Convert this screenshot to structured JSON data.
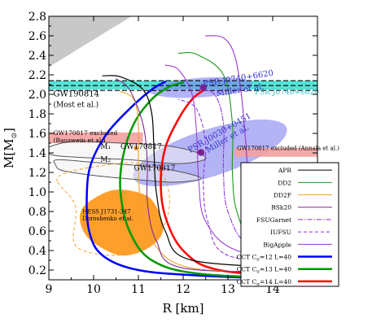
{
  "chart_data": {
    "type": "line",
    "xlabel": "R [km]",
    "ylabel": "M[M",
    "ylabel_sub": "⊙",
    "ylabel_close": "]",
    "xlim": [
      9,
      15
    ],
    "ylim": [
      0.1,
      2.8
    ],
    "xticks": [
      9,
      10,
      11,
      12,
      13,
      14
    ],
    "yticks": [
      0.2,
      0.4,
      0.6,
      0.8,
      1.0,
      1.2,
      1.4,
      1.6,
      1.8,
      2.0,
      2.2,
      2.4,
      2.6,
      2.8
    ],
    "grid": false,
    "legend_position": "bottom-right",
    "legend": [
      {
        "label": "APR",
        "color": "#000000",
        "dash": "solid",
        "width": 1
      },
      {
        "label": "DD2",
        "color": "#1a9a1a",
        "dash": "solid",
        "width": 1
      },
      {
        "label": "DD2F",
        "color": "#f0a030",
        "dash": "solid",
        "width": 1
      },
      {
        "label": "BSk20",
        "color": "#7b2d8b",
        "dash": "solid",
        "width": 1
      },
      {
        "label": "FSUGarnet",
        "color": "#8a2be2",
        "dash": "dashdot",
        "width": 1
      },
      {
        "label": "IUFSU",
        "color": "#8a2be2",
        "dash": "dash",
        "width": 1
      },
      {
        "label": "BigApple",
        "color": "#9933cc",
        "dash": "solid",
        "width": 1
      },
      {
        "label": "CCT Cσ=12 L=40",
        "color": "#0000ff",
        "dash": "solid",
        "width": 2.5
      },
      {
        "label": "CCT Cσ=13 L=40",
        "color": "#009900",
        "dash": "solid",
        "width": 2.5
      },
      {
        "label": "CCT Cσ=14 L=40",
        "color": "#ff0000",
        "dash": "solid",
        "width": 2.5
      }
    ],
    "legend_labels_rich": [
      {
        "pre": "APR"
      },
      {
        "pre": "DD2"
      },
      {
        "pre": "DD2F"
      },
      {
        "pre": "BSk20"
      },
      {
        "pre": "FSUGarnet"
      },
      {
        "pre": "IUFSU"
      },
      {
        "pre": "BigApple"
      },
      {
        "pre": "CCT C",
        "sub": "σ",
        "post": "=12 L=40"
      },
      {
        "pre": "CCT C",
        "sub": "σ",
        "post": "=13 L=40"
      },
      {
        "pre": "CCT C",
        "sub": "σ",
        "post": "=14 L=40"
      }
    ],
    "series": [
      {
        "name": "CCT Cσ=12 L=40",
        "color": "#0000ff",
        "width": 2.5,
        "x": [
          14.9,
          12.5,
          11.0,
          10.2,
          9.9,
          9.85,
          9.95,
          10.3,
          10.8,
          11.3,
          11.6
        ],
        "y": [
          0.1,
          0.14,
          0.2,
          0.35,
          0.6,
          1.0,
          1.3,
          1.6,
          1.85,
          2.05,
          2.13
        ]
      },
      {
        "name": "CCT Cσ=13 L=40",
        "color": "#009900",
        "width": 2.5,
        "x": [
          14.9,
          12.4,
          11.3,
          10.8,
          10.6,
          10.65,
          10.9,
          11.3,
          11.7,
          12.0
        ],
        "y": [
          0.11,
          0.16,
          0.3,
          0.6,
          1.0,
          1.35,
          1.7,
          1.95,
          2.08,
          2.12
        ]
      },
      {
        "name": "CCT Cσ=14 L=40",
        "color": "#ff0000",
        "width": 2.5,
        "x": [
          14.9,
          12.8,
          12.0,
          11.6,
          11.5,
          11.6,
          11.9,
          12.2,
          12.45
        ],
        "y": [
          0.12,
          0.2,
          0.4,
          0.75,
          1.1,
          1.45,
          1.75,
          1.95,
          2.04
        ]
      },
      {
        "name": "APR",
        "color": "#000000",
        "width": 1.2,
        "x": [
          14.9,
          12.2,
          11.6,
          11.4,
          11.35,
          11.3,
          11.1,
          10.6,
          10.2
        ],
        "y": [
          0.22,
          0.3,
          0.6,
          1.0,
          1.4,
          1.8,
          2.05,
          2.18,
          2.19
        ]
      },
      {
        "name": "DD2",
        "color": "#1a9a1a",
        "width": 1.1,
        "x": [
          14.9,
          13.6,
          13.2,
          13.1,
          13.1,
          12.9,
          12.3,
          11.9
        ],
        "y": [
          0.4,
          0.5,
          0.8,
          1.2,
          1.7,
          2.2,
          2.41,
          2.42
        ]
      },
      {
        "name": "DD2F",
        "color": "#f0a030",
        "width": 1.1,
        "x": [
          14.9,
          12.2,
          11.3,
          11.05,
          11.0,
          11.0,
          10.9,
          10.6
        ],
        "y": [
          0.18,
          0.22,
          0.5,
          0.9,
          1.3,
          1.7,
          1.95,
          2.03
        ]
      },
      {
        "name": "BSk20",
        "color": "#7b2d8b",
        "width": 1.1,
        "x": [
          14.9,
          12.0,
          11.4,
          11.2,
          11.2,
          11.1,
          10.8,
          10.5
        ],
        "y": [
          0.18,
          0.22,
          0.5,
          0.9,
          1.3,
          1.7,
          2.05,
          2.16
        ]
      },
      {
        "name": "FSUGarnet",
        "color": "#8a2be2",
        "width": 1.0,
        "dash": "6,2,1.5,2",
        "x": [
          14.9,
          13.5,
          13.0,
          12.9,
          12.9,
          12.7,
          12.3
        ],
        "y": [
          0.35,
          0.45,
          0.8,
          1.2,
          1.7,
          2.0,
          2.05
        ]
      },
      {
        "name": "IUFSU",
        "color": "#8a2be2",
        "width": 1.0,
        "dash": "4,3",
        "x": [
          14.9,
          13.0,
          12.55,
          12.45,
          12.5,
          12.3,
          11.9
        ],
        "y": [
          0.25,
          0.35,
          0.7,
          1.1,
          1.5,
          1.85,
          1.95
        ]
      },
      {
        "name": "BigApple",
        "color": "#9933cc",
        "width": 1.1,
        "x": [
          14.9,
          13.9,
          13.5,
          13.4,
          13.3,
          13.15,
          12.9,
          12.5
        ],
        "y": [
          0.45,
          0.6,
          1.0,
          1.5,
          2.0,
          2.4,
          2.58,
          2.6
        ]
      },
      {
        "name": "extra-curve",
        "color": "#9933cc",
        "width": 1.0,
        "x": [
          14.9,
          13.2,
          12.5,
          12.35,
          12.3,
          12.2,
          11.9,
          11.6
        ],
        "y": [
          0.3,
          0.4,
          0.7,
          1.1,
          1.6,
          2.0,
          2.25,
          2.3
        ]
      }
    ],
    "annotations": [
      {
        "text": "PSR J0740+6620",
        "color": "#30c8c8",
        "x": 13.6,
        "y": 2.0,
        "size": 9
      },
      {
        "text": "GW190814",
        "color": "#000000",
        "x": 9.1,
        "y": 1.98,
        "size": 10
      },
      {
        "text": "(Most et al.)",
        "color": "#000000",
        "x": 9.1,
        "y": 1.87,
        "size": 9
      },
      {
        "text": "GW170817 excluded",
        "color": "#000000",
        "x": 9.1,
        "y": 1.585,
        "size": 7.5
      },
      {
        "text": "(Bauswein et al.)",
        "color": "#000000",
        "x": 9.1,
        "y": 1.51,
        "size": 7.5
      },
      {
        "text": "GW170817 excluded (Annala et al.)",
        "color": "#000000",
        "x": 13.2,
        "y": 1.43,
        "size": 7
      },
      {
        "text": "M₁",
        "color": "#000000",
        "x": 10.15,
        "y": 1.44,
        "size": 9
      },
      {
        "text": "M₂",
        "color": "#000000",
        "x": 10.15,
        "y": 1.31,
        "size": 9
      },
      {
        "text": "GW170817",
        "color": "#000000",
        "x": 10.6,
        "y": 1.44,
        "size": 9
      },
      {
        "text": "GW170817",
        "color": "#000000",
        "x": 10.9,
        "y": 1.22,
        "size": 9
      },
      {
        "text": "HESS J1731-347",
        "color": "#000000",
        "x": 9.75,
        "y": 0.78,
        "size": 7
      },
      {
        "text": "Doroshenko et al.",
        "color": "#000000",
        "x": 9.75,
        "y": 0.71,
        "size": 7
      }
    ],
    "rotated_labels": [
      {
        "text": "PSR J0740+6620",
        "color": "#3333cc",
        "x": 12.45,
        "y": 2.08,
        "angle": -9,
        "size": 10
      },
      {
        "text": "Miller et al.",
        "color": "#3333cc",
        "x": 12.75,
        "y": 1.98,
        "angle": -9,
        "size": 10
      },
      {
        "text": "PSR J0030+0451",
        "color": "#3333cc",
        "x": 12.15,
        "y": 1.4,
        "angle": -30,
        "size": 10
      },
      {
        "text": "Miller et al.",
        "color": "#3333cc",
        "x": 12.55,
        "y": 1.4,
        "angle": -30,
        "size": 10
      }
    ],
    "regions": [
      {
        "kind": "polygon",
        "name": "causality",
        "color": "#c8c8c8",
        "points": [
          [
            9,
            2.8
          ],
          [
            10.85,
            2.8
          ],
          [
            9,
            2.28
          ]
        ]
      },
      {
        "kind": "band",
        "name": "psr-j0740-band",
        "color": "#40e0d0",
        "y0": 2.05,
        "y1": 2.14
      },
      {
        "kind": "ellipse",
        "name": "psr-j0740-ellipse",
        "color": "#8080f0",
        "cx": 12.4,
        "cy": 2.07,
        "rx": 2.3,
        "ry": 0.1,
        "angle": -4
      },
      {
        "kind": "ellipse",
        "name": "psr-j0030-ellipse",
        "color": "#8080f0",
        "cx": 12.6,
        "cy": 1.4,
        "rx": 3.6,
        "ry": 0.24,
        "angle": -18
      },
      {
        "kind": "rect",
        "name": "gw170817-bauswein",
        "color": "#f4a0a0",
        "x0": 9,
        "x1": 11.1,
        "y0": 1.5,
        "y1": 1.61
      },
      {
        "kind": "rect",
        "name": "gw170817-annala",
        "color": "#f4a0a0",
        "x0": 13.15,
        "x1": 15,
        "y0": 1.36,
        "y1": 1.45
      }
    ],
    "hlines": [
      {
        "y": 2.14,
        "dash": "6,3",
        "color": "#000000"
      },
      {
        "y": 2.09,
        "dash": "6,3",
        "color": "#000000"
      },
      {
        "y": 2.04,
        "dash": "6,3",
        "color": "#000000"
      }
    ],
    "gw_contours": [
      {
        "name": "M1",
        "color": "#555555",
        "points": [
          [
            9,
            1.46
          ],
          [
            9.6,
            1.52
          ],
          [
            10.6,
            1.5
          ],
          [
            11.5,
            1.48
          ],
          [
            12.2,
            1.42
          ],
          [
            12.5,
            1.34
          ],
          [
            11.9,
            1.29
          ],
          [
            10.8,
            1.33
          ],
          [
            9.9,
            1.35
          ],
          [
            9.2,
            1.37
          ],
          [
            9,
            1.4
          ]
        ]
      },
      {
        "name": "M2",
        "color": "#555555",
        "points": [
          [
            9.2,
            1.33
          ],
          [
            10.1,
            1.3
          ],
          [
            11.0,
            1.27
          ],
          [
            11.8,
            1.22
          ],
          [
            12.4,
            1.14
          ],
          [
            11.8,
            1.1
          ],
          [
            10.9,
            1.13
          ],
          [
            10.0,
            1.17
          ],
          [
            9.3,
            1.22
          ],
          [
            9.15,
            1.28
          ]
        ]
      },
      {
        "name": "gw-orange-dashed",
        "color": "#f0a030",
        "dashed": true,
        "points": [
          [
            9.2,
            1.1
          ],
          [
            9.6,
            0.85
          ],
          [
            9.6,
            0.45
          ],
          [
            10.5,
            0.35
          ],
          [
            11.0,
            0.45
          ],
          [
            11.5,
            0.6
          ],
          [
            11.7,
            0.9
          ],
          [
            11.5,
            1.2
          ],
          [
            10.9,
            1.3
          ],
          [
            9.9,
            1.25
          ],
          [
            9.3,
            1.18
          ]
        ]
      }
    ],
    "markers": [
      {
        "name": "psr-j0740-dot",
        "x": 12.45,
        "y": 2.07,
        "color": "#7a2090"
      },
      {
        "name": "psr-j0030-dot",
        "x": 12.4,
        "y": 1.405,
        "color": "#7a2090"
      },
      {
        "name": "gw-dot",
        "x": 10.95,
        "y": 1.45,
        "color": "#f0a030"
      }
    ],
    "hess_blob": {
      "color": "#ff9a20",
      "points": [
        [
          9.9,
          0.9
        ],
        [
          10.45,
          1.02
        ],
        [
          11.1,
          0.98
        ],
        [
          11.4,
          0.85
        ],
        [
          11.55,
          0.6
        ],
        [
          11.2,
          0.42
        ],
        [
          10.6,
          0.35
        ],
        [
          10.0,
          0.48
        ],
        [
          9.75,
          0.62
        ],
        [
          9.7,
          0.78
        ]
      ]
    }
  },
  "colors": {
    "axis": "#000000",
    "legend_border": "#000000",
    "background": "#ffffff"
  }
}
